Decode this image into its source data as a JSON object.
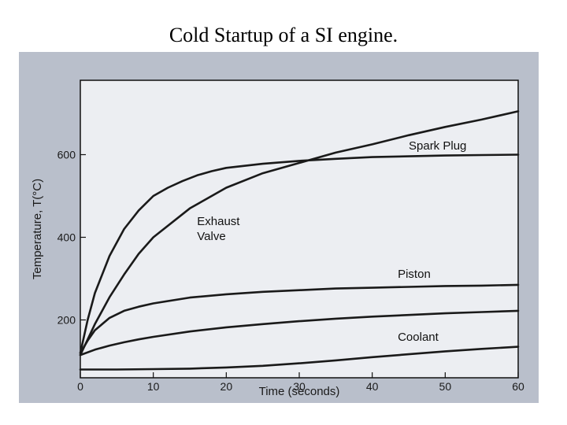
{
  "slide": {
    "title": "Cold Startup of a SI engine."
  },
  "chart_data": {
    "type": "line",
    "title": "",
    "xlabel": "Time (seconds)",
    "ylabel": "Temperature, T(°C)",
    "xlim": [
      0,
      60
    ],
    "ylim": [
      60,
      780
    ],
    "xticks": [
      0,
      10,
      20,
      30,
      40,
      50,
      60
    ],
    "yticks": [
      200,
      400,
      600
    ],
    "grid": false,
    "series": [
      {
        "name": "Spark Plug",
        "label": "Spark Plug",
        "x": [
          0,
          1,
          2,
          4,
          6,
          8,
          10,
          12,
          14,
          16,
          18,
          20,
          25,
          30,
          35,
          40,
          45,
          50,
          55,
          60
        ],
        "y": [
          120,
          200,
          265,
          355,
          420,
          465,
          500,
          520,
          536,
          550,
          560,
          568,
          578,
          585,
          590,
          594,
          596,
          598,
          599,
          600
        ]
      },
      {
        "name": "Exhaust Valve",
        "label": "Exhaust\nValve",
        "x": [
          0,
          2,
          4,
          6,
          8,
          10,
          15,
          20,
          25,
          30,
          35,
          40,
          45,
          50,
          55,
          60
        ],
        "y": [
          115,
          190,
          255,
          310,
          360,
          400,
          470,
          520,
          555,
          580,
          605,
          625,
          647,
          667,
          685,
          705
        ]
      },
      {
        "name": "Piston",
        "label": "Piston",
        "x": [
          0,
          1,
          2,
          4,
          6,
          8,
          10,
          15,
          20,
          25,
          30,
          35,
          40,
          45,
          50,
          55,
          60
        ],
        "y": [
          120,
          150,
          175,
          205,
          222,
          232,
          240,
          254,
          262,
          268,
          272,
          276,
          278,
          280,
          282,
          283,
          285
        ]
      },
      {
        "name": "Coolant",
        "label": "Coolant",
        "x": [
          0,
          5,
          10,
          15,
          20,
          25,
          30,
          35,
          40,
          45,
          50,
          55,
          60
        ],
        "y": [
          80,
          80,
          81,
          82,
          85,
          89,
          95,
          102,
          110,
          117,
          124,
          130,
          135
        ]
      },
      {
        "name": "",
        "label": "",
        "x": [
          0,
          2,
          4,
          6,
          8,
          10,
          15,
          20,
          25,
          30,
          35,
          40,
          45,
          50,
          55,
          60
        ],
        "y": [
          115,
          128,
          138,
          146,
          153,
          159,
          172,
          182,
          190,
          197,
          203,
          208,
          212,
          216,
          219,
          222
        ]
      }
    ]
  }
}
